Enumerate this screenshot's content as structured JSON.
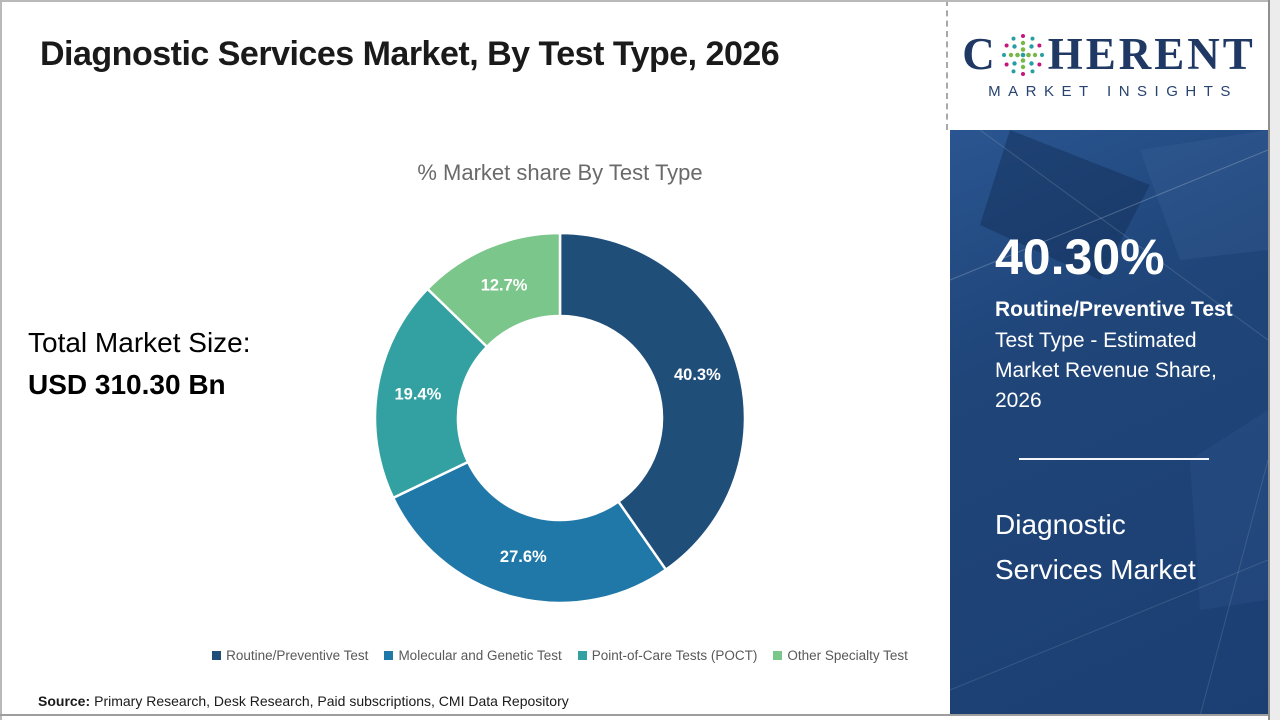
{
  "page": {
    "title": "Diagnostic Services Market, By Test Type, 2026",
    "source_label": "Source:",
    "source_text": "Primary Research, Desk Research, Paid subscriptions, CMI Data Repository"
  },
  "logo": {
    "brand_first_letter": "C",
    "brand_rest": "HERENT",
    "brand_sub": "MARKET INSIGHTS",
    "brand_color": "#1f3864",
    "globe_dot_colors": {
      "outer": "#c4177c",
      "mid_teal": "#279fa2",
      "inner_green": "#7ab648"
    }
  },
  "market": {
    "total_label": "Total Market Size:",
    "total_value": "USD 310.30 Bn"
  },
  "chart_data": {
    "type": "pie",
    "variant": "donut",
    "title": "% Market share By Test Type",
    "categories": [
      "Routine/Preventive Test",
      "Molecular and Genetic Test",
      "Point-of-Care Tests (POCT)",
      "Other Specialty Test"
    ],
    "values": [
      40.3,
      27.6,
      19.4,
      12.7
    ],
    "labels": [
      "40.3%",
      "27.6%",
      "19.4%",
      "12.7%"
    ],
    "unit": "%",
    "colors": [
      "#1f4e79",
      "#2078a8",
      "#33a0a1",
      "#7bc68b"
    ],
    "start_angle_deg": 0,
    "direction": "clockwise",
    "legend_position": "bottom"
  },
  "sidebar": {
    "highlight_value": "40.30%",
    "highlight_segment": "Routine/Preventive Test",
    "highlight_desc": "Test Type - Estimated Market Revenue Share, 2026",
    "market_name": "Diagnostic Services Market",
    "bg_color": "#1d4278"
  }
}
